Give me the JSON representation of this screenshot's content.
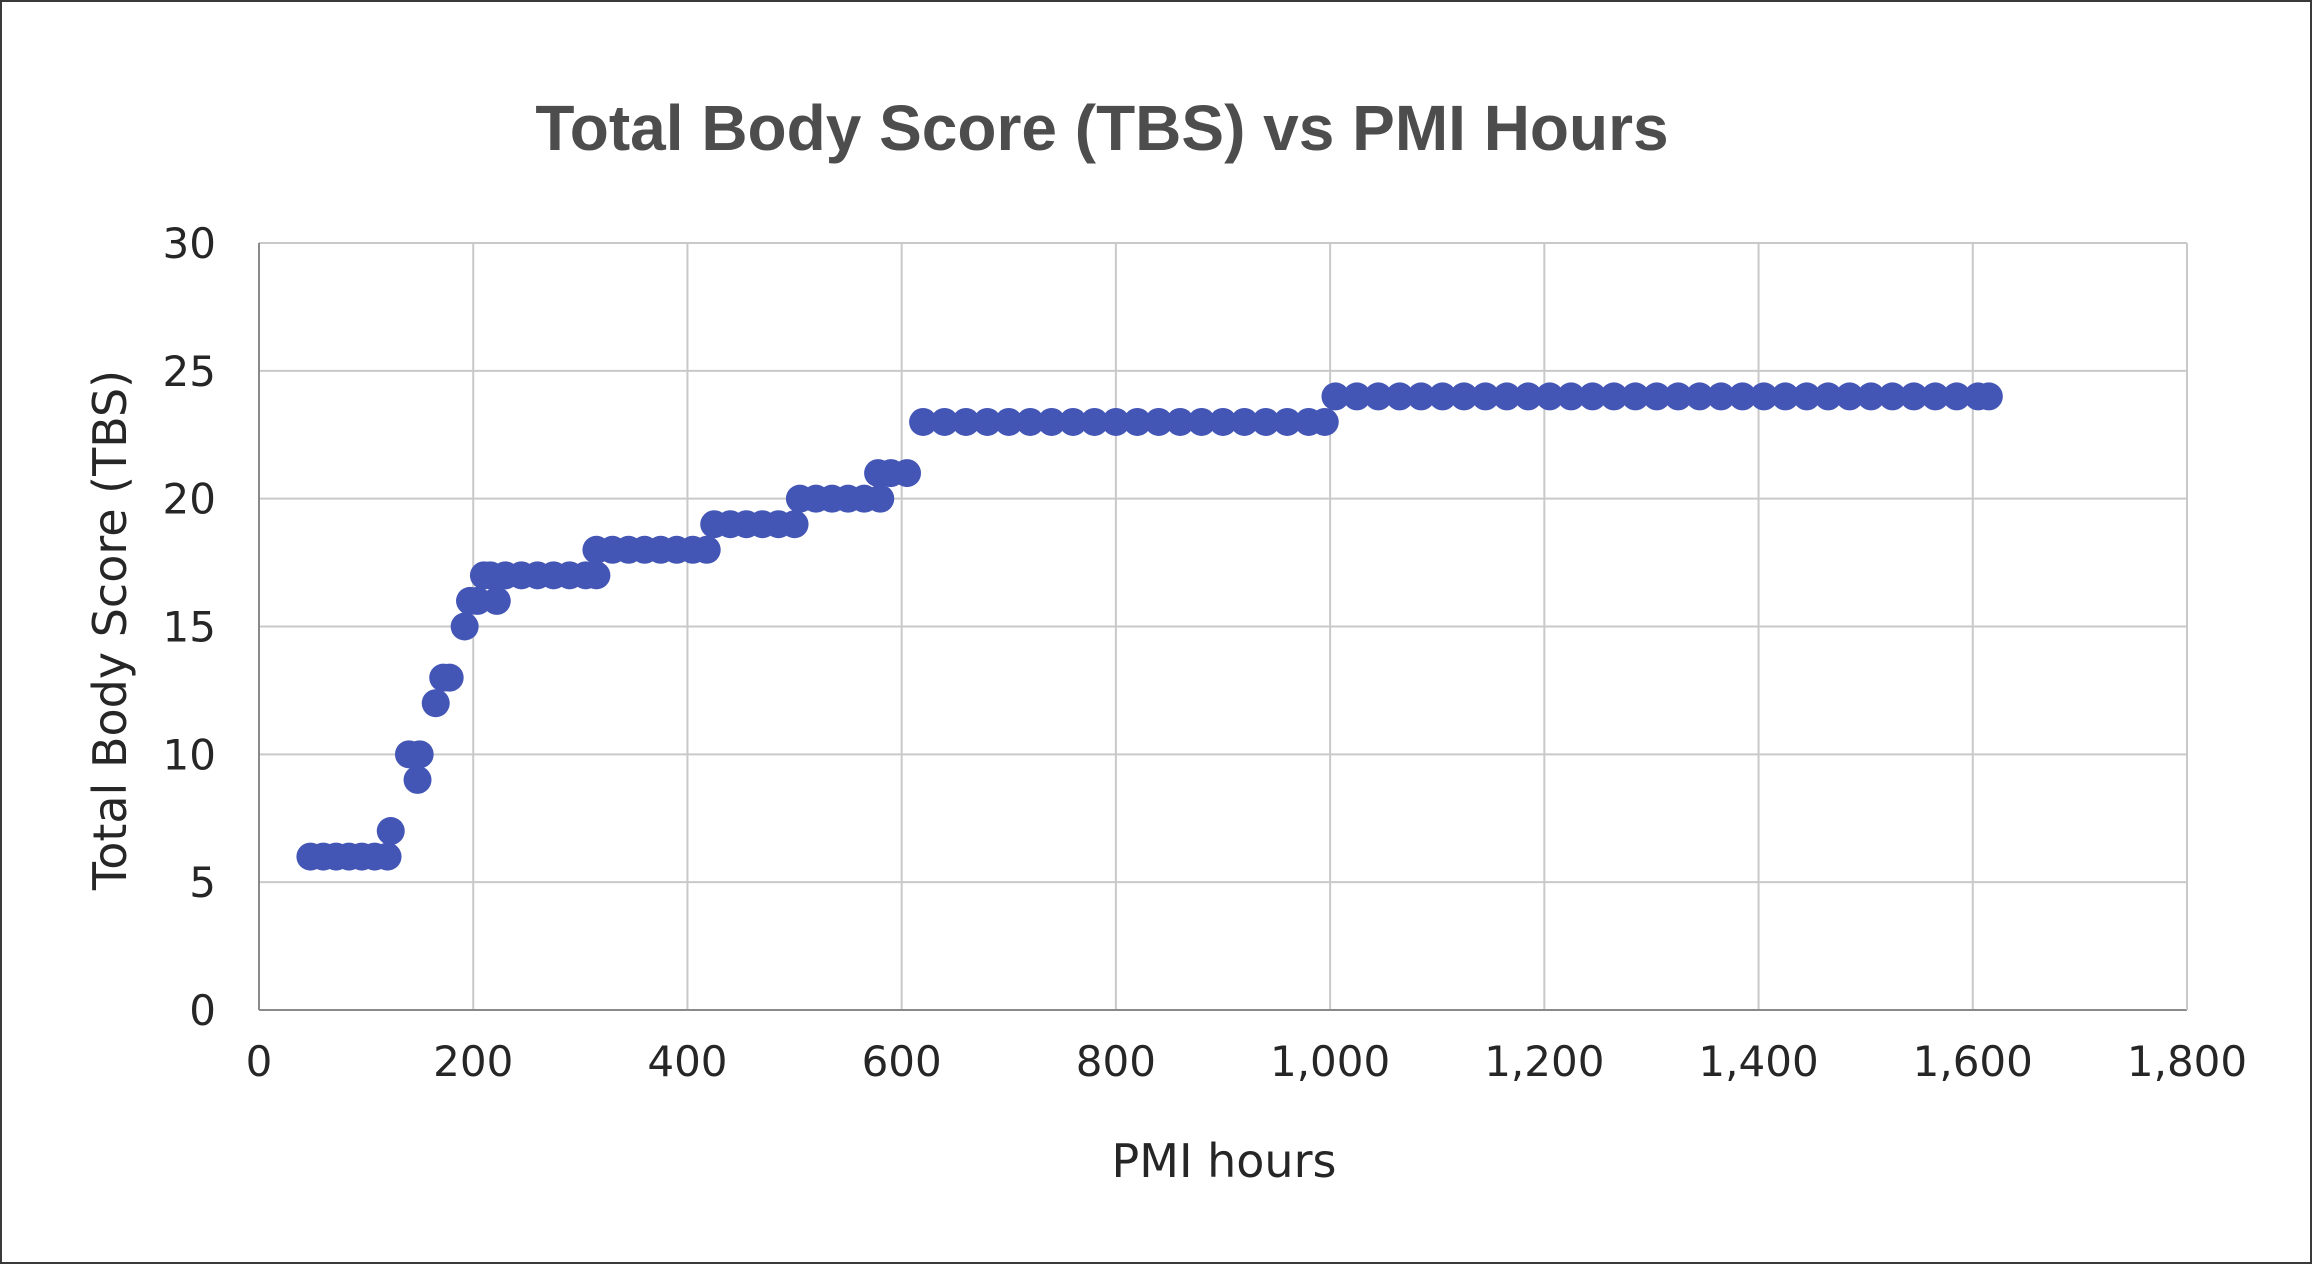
{
  "chart_data": {
    "type": "scatter",
    "title": "Total Body Score (TBS) vs PMI Hours",
    "xlabel": "PMI hours",
    "ylabel": "Total Body Score (TBS)",
    "xlim": [
      0,
      1800
    ],
    "ylim": [
      0,
      30
    ],
    "x_ticks": [
      "0",
      "200",
      "400",
      "600",
      "800",
      "1,000",
      "1,200",
      "1,400",
      "1,600",
      "1,800"
    ],
    "y_ticks": [
      "0",
      "5",
      "10",
      "15",
      "20",
      "25",
      "30"
    ],
    "grid": true,
    "legend": "none",
    "marker_color": "#4355b5",
    "points": [
      [
        48,
        6
      ],
      [
        60,
        6
      ],
      [
        72,
        6
      ],
      [
        84,
        6
      ],
      [
        96,
        6
      ],
      [
        108,
        6
      ],
      [
        120,
        6
      ],
      [
        123,
        7
      ],
      [
        140,
        10
      ],
      [
        150,
        10
      ],
      [
        148,
        9
      ],
      [
        165,
        12
      ],
      [
        172,
        13
      ],
      [
        178,
        13
      ],
      [
        192,
        15
      ],
      [
        197,
        16
      ],
      [
        204,
        16
      ],
      [
        210,
        17
      ],
      [
        216,
        17
      ],
      [
        222,
        16
      ],
      [
        230,
        17
      ],
      [
        245,
        17
      ],
      [
        260,
        17
      ],
      [
        275,
        17
      ],
      [
        290,
        17
      ],
      [
        305,
        17
      ],
      [
        315,
        17
      ],
      [
        315,
        18
      ],
      [
        330,
        18
      ],
      [
        345,
        18
      ],
      [
        360,
        18
      ],
      [
        375,
        18
      ],
      [
        390,
        18
      ],
      [
        405,
        18
      ],
      [
        418,
        18
      ],
      [
        425,
        19
      ],
      [
        440,
        19
      ],
      [
        455,
        19
      ],
      [
        470,
        19
      ],
      [
        485,
        19
      ],
      [
        500,
        19
      ],
      [
        505,
        20
      ],
      [
        520,
        20
      ],
      [
        535,
        20
      ],
      [
        550,
        20
      ],
      [
        565,
        20
      ],
      [
        580,
        20
      ],
      [
        578,
        21
      ],
      [
        590,
        21
      ],
      [
        605,
        21
      ],
      [
        620,
        23
      ],
      [
        640,
        23
      ],
      [
        660,
        23
      ],
      [
        680,
        23
      ],
      [
        700,
        23
      ],
      [
        720,
        23
      ],
      [
        740,
        23
      ],
      [
        760,
        23
      ],
      [
        780,
        23
      ],
      [
        800,
        23
      ],
      [
        820,
        23
      ],
      [
        840,
        23
      ],
      [
        860,
        23
      ],
      [
        880,
        23
      ],
      [
        900,
        23
      ],
      [
        920,
        23
      ],
      [
        940,
        23
      ],
      [
        960,
        23
      ],
      [
        980,
        23
      ],
      [
        995,
        23
      ],
      [
        1005,
        24
      ],
      [
        1025,
        24
      ],
      [
        1045,
        24
      ],
      [
        1065,
        24
      ],
      [
        1085,
        24
      ],
      [
        1105,
        24
      ],
      [
        1125,
        24
      ],
      [
        1145,
        24
      ],
      [
        1165,
        24
      ],
      [
        1185,
        24
      ],
      [
        1205,
        24
      ],
      [
        1225,
        24
      ],
      [
        1245,
        24
      ],
      [
        1265,
        24
      ],
      [
        1285,
        24
      ],
      [
        1305,
        24
      ],
      [
        1325,
        24
      ],
      [
        1345,
        24
      ],
      [
        1365,
        24
      ],
      [
        1385,
        24
      ],
      [
        1405,
        24
      ],
      [
        1425,
        24
      ],
      [
        1445,
        24
      ],
      [
        1465,
        24
      ],
      [
        1485,
        24
      ],
      [
        1505,
        24
      ],
      [
        1525,
        24
      ],
      [
        1545,
        24
      ],
      [
        1565,
        24
      ],
      [
        1585,
        24
      ],
      [
        1605,
        24
      ],
      [
        1615,
        24
      ]
    ]
  }
}
